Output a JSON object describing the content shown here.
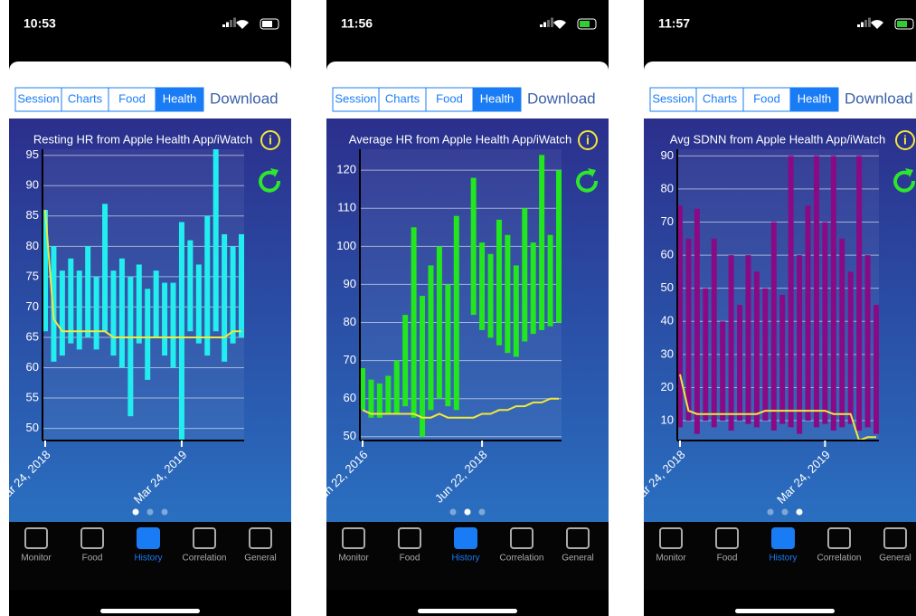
{
  "screens": [
    {
      "status_time": "10:53",
      "tabs": [
        "Session",
        "Charts",
        "Food",
        "Health"
      ],
      "download": "Download",
      "active_tab": 3,
      "chart_data": {
        "type": "range",
        "title": "Resting HR from Apple Health App/iWatch",
        "info_icon": "i",
        "color": "#22eef0",
        "trend_color": "#f2e83a",
        "ylim": [
          48,
          96
        ],
        "yticks": [
          50,
          55,
          60,
          65,
          70,
          75,
          80,
          85,
          90,
          95
        ],
        "xticks": [
          {
            "value": 0,
            "label": "Mar 24, 2018"
          },
          {
            "value": 16,
            "label": "Mar 24, 2019"
          }
        ],
        "highs": [
          86,
          80,
          76,
          78,
          76,
          80,
          75,
          87,
          76,
          78,
          75,
          77,
          73,
          76,
          74,
          74,
          84,
          81,
          77,
          85,
          96,
          82,
          80,
          82
        ],
        "lows": [
          66,
          61,
          62,
          64,
          63,
          65,
          63,
          66,
          62,
          60,
          52,
          64,
          58,
          65,
          62,
          60,
          48,
          66,
          64,
          62,
          66,
          61,
          64,
          65
        ],
        "trend": [
          86,
          68,
          66,
          66,
          66,
          66,
          66,
          66,
          65,
          65,
          65,
          65,
          65,
          65,
          65,
          65,
          65,
          65,
          65,
          65,
          65,
          65,
          66,
          66
        ]
      },
      "active_page": 0
    },
    {
      "status_time": "11:56",
      "tabs": [
        "Session",
        "Charts",
        "Food",
        "Health"
      ],
      "download": "Download",
      "active_tab": 3,
      "chart_data": {
        "type": "range",
        "title": "Average HR from Apple Health App/iWatch",
        "info_icon": "i",
        "color": "#22e61e",
        "trend_color": "#f2e83a",
        "ylim": [
          49,
          125.5
        ],
        "yticks": [
          50,
          60,
          70,
          80,
          90,
          100,
          110,
          120
        ],
        "xticks": [
          {
            "value": 0,
            "label": "Jun 22, 2016"
          },
          {
            "value": 14,
            "label": "Jun 22, 2018"
          }
        ],
        "highs": [
          68,
          65,
          64,
          66,
          70,
          82,
          105,
          87,
          95,
          100,
          90,
          108,
          76,
          118,
          101,
          98,
          107,
          103,
          95,
          110,
          101,
          124,
          103,
          120
        ],
        "lows": [
          57,
          55,
          55,
          56,
          56,
          58,
          55,
          50,
          57,
          60,
          58,
          57,
          80,
          82,
          78,
          76,
          74,
          72,
          71,
          75,
          77,
          78,
          79,
          80
        ],
        "trend": [
          57,
          56,
          56,
          56,
          56,
          56,
          56,
          55,
          55,
          56,
          55,
          55,
          55,
          55,
          56,
          56,
          57,
          57,
          58,
          58,
          59,
          59,
          60,
          60
        ]
      },
      "active_page": 1
    },
    {
      "status_time": "11:57",
      "tabs": [
        "Session",
        "Charts",
        "Food",
        "Health"
      ],
      "download": "Download",
      "active_tab": 3,
      "chart_data": {
        "type": "range",
        "title": "Avg SDNN from Apple Health App/iWatch",
        "info_icon": "i",
        "color": "#8a0a86",
        "trend_color": "#f2e83a",
        "ylim": [
          4,
          92
        ],
        "yticks": [
          10,
          20,
          30,
          40,
          50,
          60,
          70,
          80,
          90
        ],
        "xticks": [
          {
            "value": 0,
            "label": "Mar 24, 2018"
          },
          {
            "value": 17,
            "label": "Mar 24, 2019"
          }
        ],
        "highs": [
          75,
          65,
          74,
          50,
          65,
          40,
          60,
          45,
          60,
          55,
          50,
          70,
          48,
          90,
          60,
          75,
          90,
          70,
          90,
          65,
          55,
          90,
          60,
          45
        ],
        "lows": [
          8,
          10,
          6,
          10,
          8,
          10,
          7,
          10,
          9,
          8,
          10,
          7,
          9,
          8,
          6,
          10,
          8,
          9,
          7,
          8,
          9,
          7,
          8,
          6
        ],
        "trend": [
          24,
          13,
          12,
          12,
          12,
          12,
          12,
          12,
          12,
          12,
          13,
          13,
          13,
          13,
          13,
          13,
          13,
          13,
          12,
          12,
          12,
          4,
          5,
          5
        ]
      },
      "active_page": 2
    }
  ],
  "tab_bar": [
    "Monitor",
    "Food",
    "History",
    "Correlation",
    "General"
  ],
  "active_bar_item": 2
}
